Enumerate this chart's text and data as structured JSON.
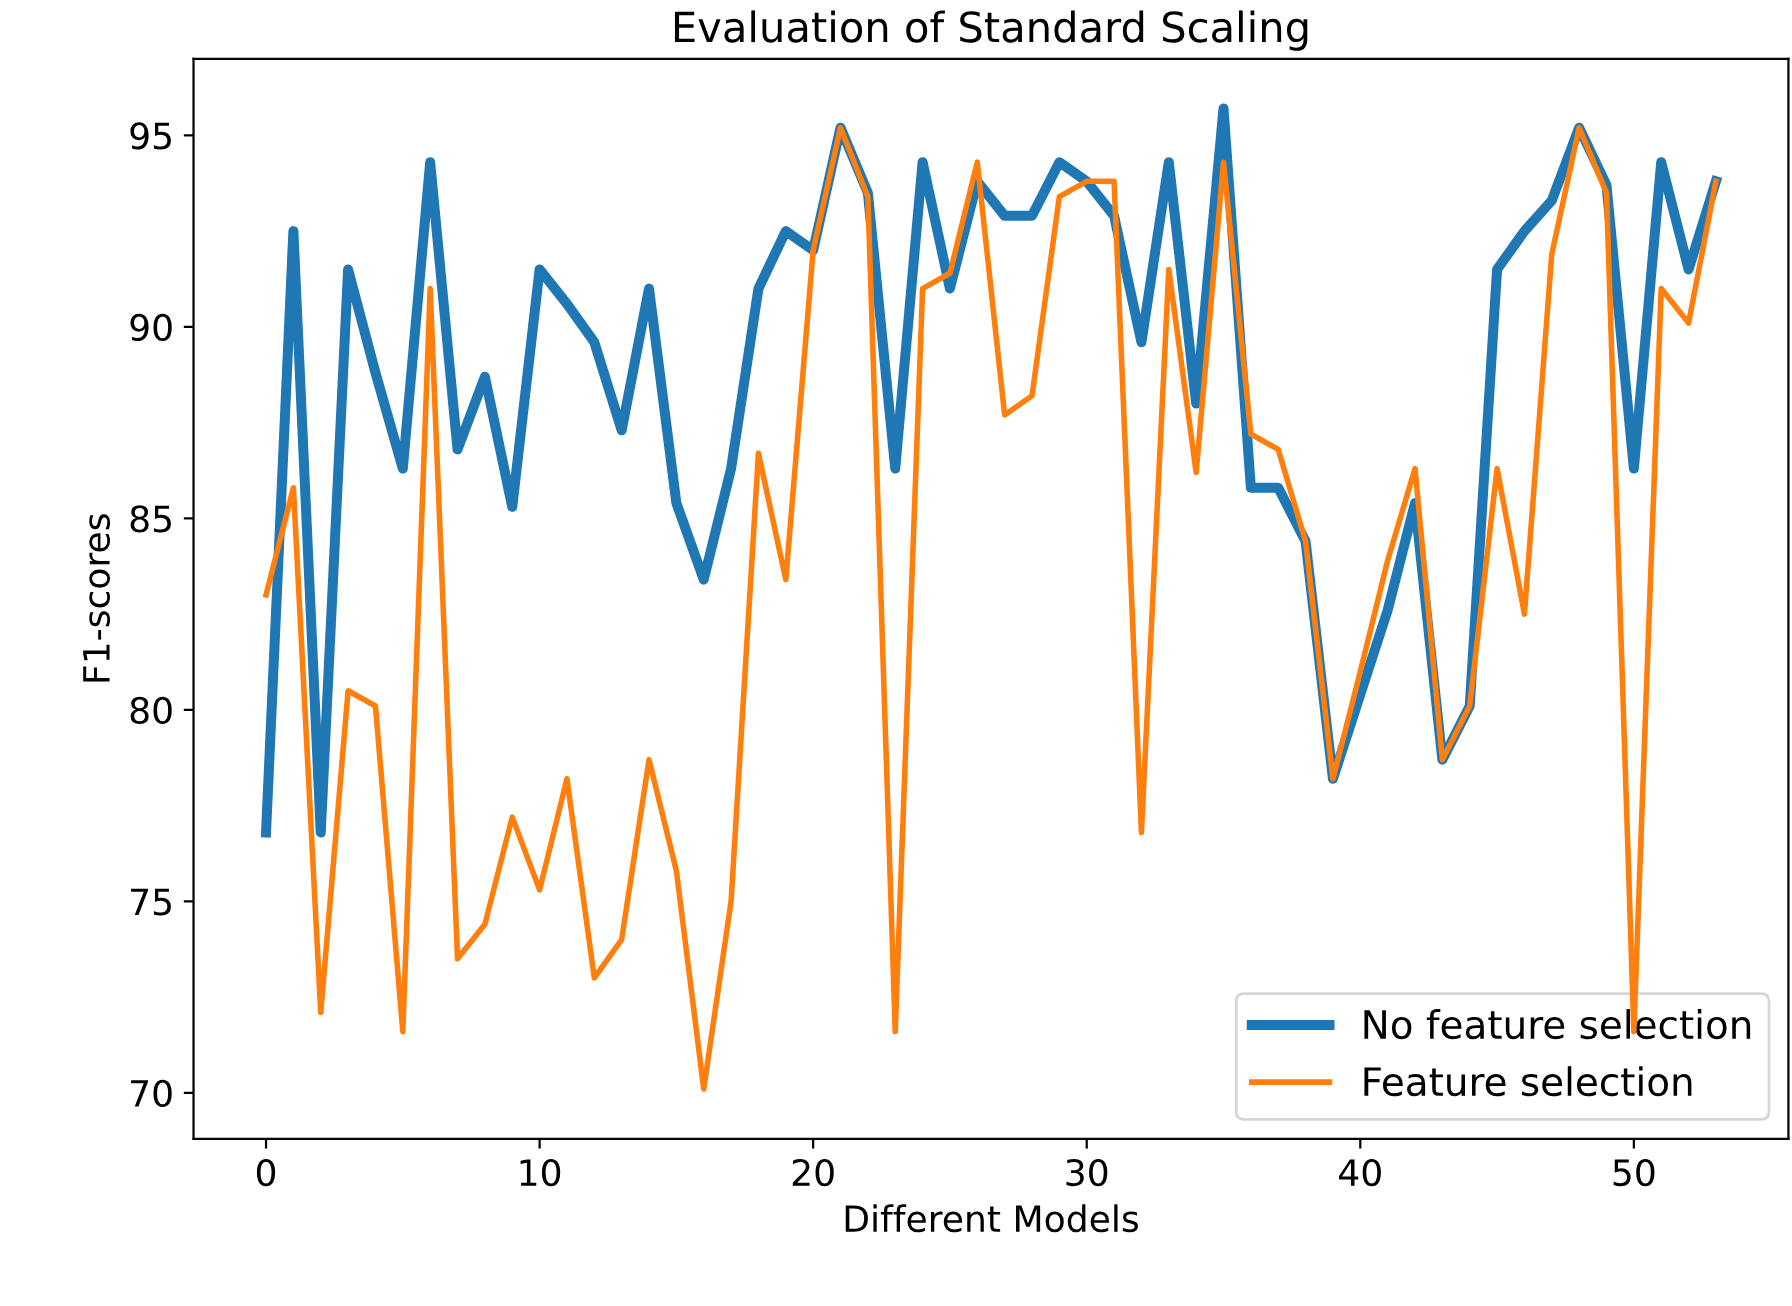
{
  "chart_data": {
    "type": "line",
    "title": "Evaluation of Standard Scaling",
    "xlabel": "Different Models",
    "ylabel": "F1-scores",
    "x": [
      0,
      1,
      2,
      3,
      4,
      5,
      6,
      7,
      8,
      9,
      10,
      11,
      12,
      13,
      14,
      15,
      16,
      17,
      18,
      19,
      20,
      21,
      22,
      23,
      24,
      25,
      26,
      27,
      28,
      29,
      30,
      31,
      32,
      33,
      34,
      35,
      36,
      37,
      38,
      39,
      40,
      41,
      42,
      43,
      44,
      45,
      46,
      47,
      48,
      49,
      50,
      51,
      52,
      53
    ],
    "series": [
      {
        "name": "No feature selection",
        "color": "#1f77b4",
        "values": [
          76.8,
          92.5,
          76.8,
          91.5,
          88.8,
          86.3,
          94.3,
          86.8,
          88.7,
          85.3,
          91.5,
          90.6,
          89.6,
          87.3,
          91.0,
          85.4,
          83.4,
          86.3,
          91.0,
          92.5,
          92.0,
          95.2,
          93.5,
          86.3,
          94.3,
          91.0,
          93.8,
          92.9,
          92.9,
          94.3,
          93.8,
          92.9,
          89.6,
          94.3,
          88.0,
          95.7,
          85.8,
          85.8,
          84.4,
          78.2,
          80.4,
          82.6,
          85.4,
          78.7,
          80.1,
          91.5,
          92.5,
          93.3,
          95.2,
          93.7,
          86.3,
          94.3,
          91.5,
          93.8
        ]
      },
      {
        "name": "Feature selection",
        "color": "#ff7f0e",
        "values": [
          83.0,
          85.8,
          72.1,
          80.5,
          80.1,
          71.6,
          91.0,
          73.5,
          74.4,
          77.2,
          75.3,
          78.2,
          73.0,
          74.0,
          78.7,
          75.8,
          70.1,
          75.0,
          86.7,
          83.4,
          92.0,
          95.2,
          93.4,
          71.6,
          91.0,
          91.4,
          94.3,
          87.7,
          88.2,
          93.4,
          93.8,
          93.8,
          76.8,
          91.5,
          86.2,
          94.3,
          87.2,
          86.8,
          84.4,
          78.2,
          81.0,
          83.9,
          86.3,
          78.7,
          80.1,
          86.3,
          82.5,
          91.9,
          95.2,
          93.5,
          71.6,
          91.0,
          90.1,
          93.8
        ]
      }
    ],
    "xlim": [
      -2.65,
      55.65
    ],
    "ylim": [
      68.8,
      97.0
    ],
    "xticks": [
      0,
      10,
      20,
      30,
      40,
      50
    ],
    "yticks": [
      70,
      75,
      80,
      85,
      90,
      95
    ],
    "legend": "bottom right",
    "grid": false,
    "marker": "none",
    "line_style": "solid"
  }
}
